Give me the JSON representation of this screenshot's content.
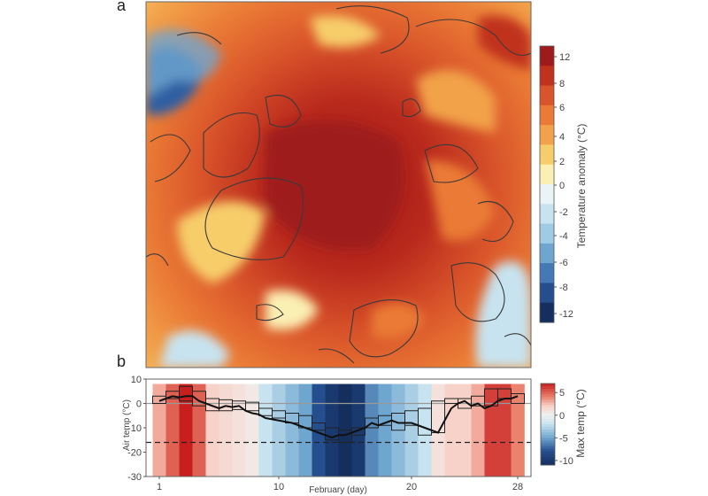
{
  "panel_a": {
    "letter": "a",
    "colorbar": {
      "label": "Temperature anomaly (°C)",
      "ticks": [
        12,
        8,
        6,
        4,
        2,
        0,
        -2,
        -4,
        -6,
        -8,
        -12
      ],
      "colors": [
        "#9e1b1b",
        "#c0321e",
        "#d9542a",
        "#ea7a35",
        "#f2a24a",
        "#f7cd6b",
        "#fbf0b4",
        "#eaf4f6",
        "#c7e3ef",
        "#9fcbe4",
        "#6fa6cf",
        "#4479b5",
        "#254e8e",
        "#142f5e"
      ]
    }
  },
  "panel_b": {
    "letter": "b",
    "chart_data": {
      "type": "line",
      "xlabel": "February (day)",
      "ylabel": "Air temp (°C)",
      "xticks": [
        1,
        10,
        20,
        28
      ],
      "yticks": [
        10,
        0,
        -10,
        -20,
        -30
      ],
      "ylim": [
        -30,
        10
      ],
      "xlim": [
        0,
        29
      ],
      "daily_max_temp_colorbar": {
        "label": "Max temp (°C)",
        "ticks": [
          5,
          0,
          -5,
          -10
        ],
        "range": [
          -11,
          7
        ]
      },
      "days": [
        1,
        2,
        3,
        4,
        5,
        6,
        7,
        8,
        9,
        10,
        11,
        12,
        13,
        14,
        15,
        16,
        17,
        18,
        19,
        20,
        21,
        22,
        23,
        24,
        25,
        26,
        27,
        28
      ],
      "daily_max": [
        3,
        5,
        7,
        5,
        2,
        1.5,
        1,
        0.5,
        -2,
        -3,
        -4,
        -5,
        -8,
        -10,
        -11,
        -10,
        -6,
        -5,
        -4,
        -3,
        -2,
        1,
        2,
        2,
        3,
        6,
        6,
        4
      ],
      "daily_min": [
        0,
        2,
        1,
        -1,
        -3,
        -3,
        -2.5,
        -3,
        -5,
        -6,
        -8,
        -10,
        -11,
        -15,
        -16,
        -13,
        -10,
        -9,
        -11,
        -9,
        -13,
        -12,
        0,
        -2,
        -1,
        -1,
        2,
        0
      ],
      "hourly_line": {
        "x": [
          1,
          1.5,
          2,
          2.5,
          3,
          3.5,
          4,
          4.5,
          5,
          5.5,
          6,
          6.5,
          7,
          7.5,
          8,
          8.5,
          9,
          9.5,
          10,
          10.5,
          11,
          11.5,
          12,
          12.5,
          13,
          13.5,
          14,
          14.5,
          15,
          15.5,
          16,
          16.5,
          17,
          17.5,
          18,
          18.5,
          19,
          19.5,
          20,
          20.5,
          21,
          21.5,
          22,
          22.5,
          23,
          23.5,
          24,
          24.5,
          25,
          25.5,
          26,
          26.5,
          27,
          27.5,
          28
        ],
        "y": [
          1,
          2,
          3,
          2.5,
          3,
          3,
          1,
          0,
          -1,
          -2,
          -1,
          -1.5,
          -1,
          -3,
          -4,
          -4.5,
          -6,
          -6.5,
          -7,
          -7.5,
          -8,
          -9,
          -10,
          -11,
          -12,
          -13,
          -14,
          -13,
          -13,
          -12,
          -11,
          -10,
          -8,
          -9,
          -8,
          -7,
          -8,
          -8,
          -8,
          -9,
          -10,
          -11,
          -12,
          -7,
          -2,
          0,
          1,
          -1,
          0,
          -2,
          -1,
          1,
          2,
          2,
          3
        ]
      },
      "threshold_dashed": -16,
      "zero_line": 0
    }
  }
}
